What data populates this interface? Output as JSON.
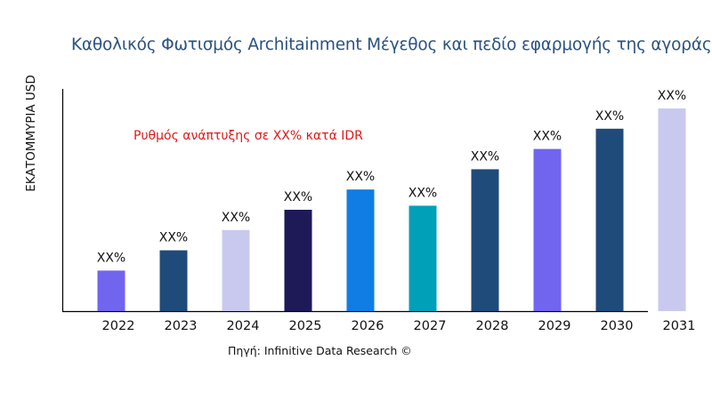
{
  "chart_data": {
    "type": "bar",
    "title": "Καθολικός Φωτισμός Architainment Μέγεθος και πεδίο εφαρμογής της αγοράς",
    "ylabel": "ΕΚΑΤΟΜΜΥΡΙΑ USD",
    "xlabel": "",
    "categories": [
      "2022",
      "2023",
      "2024",
      "2025",
      "2026",
      "2027",
      "2028",
      "2029",
      "2030",
      "2031"
    ],
    "values": [
      20,
      30,
      40,
      50,
      60,
      52,
      70,
      80,
      90,
      100
    ],
    "data_labels": [
      "XX%",
      "XX%",
      "XX%",
      "XX%",
      "XX%",
      "XX%",
      "XX%",
      "XX%",
      "XX%",
      "XX%"
    ],
    "colors": [
      "#7165f0",
      "#1f4b7a",
      "#c9c9f0",
      "#1e1a58",
      "#0f7de3",
      "#00a0b9",
      "#1f4b7a",
      "#7165f0",
      "#1f4b7a",
      "#c9c9f0"
    ],
    "annotation": "Ρυθμός ανάπτυξης σε XX% κατά IDR",
    "source": "Πηγή: Infinitive Data Research ©",
    "grid": false,
    "y_ticks_shown": false
  }
}
